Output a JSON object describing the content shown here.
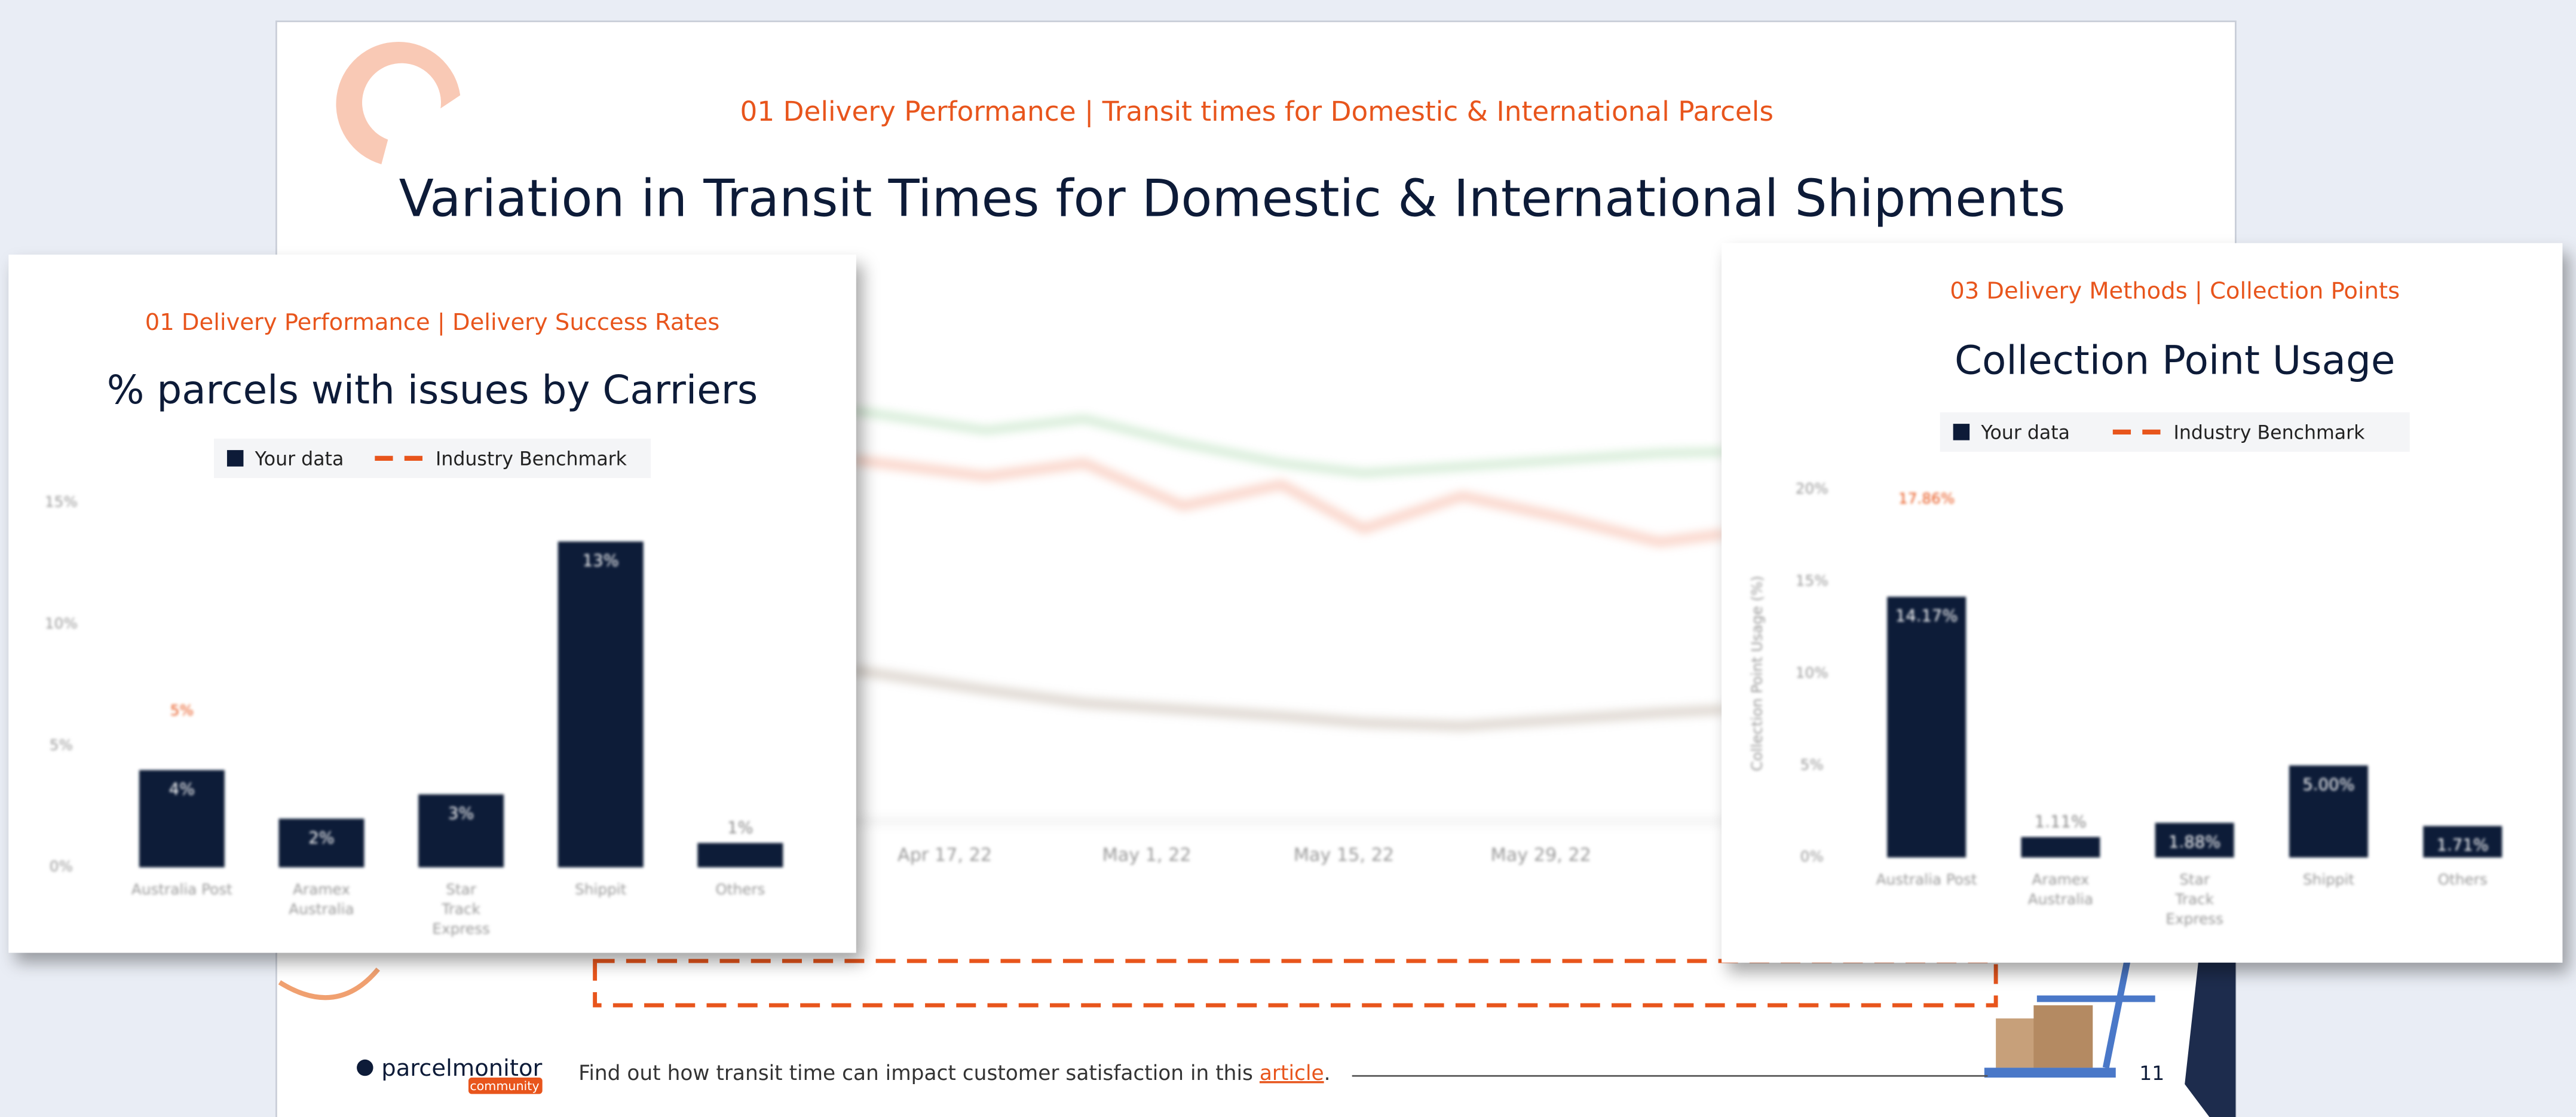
{
  "background_slide": {
    "subtitle": "01  Delivery Performance  |  Transit times for Domestic & International Parcels",
    "title": "Variation in Transit Times for Domestic & International Shipments",
    "x_labels": [
      "Apr 17, 22",
      "May 1, 22",
      "May 15, 22",
      "May 29, 22"
    ],
    "footer": {
      "brand": "parcelmonitor",
      "brand_tag": "community",
      "text": "Find out how transit time can impact customer satisfaction in this",
      "link": "article",
      "end": ".",
      "page": "11"
    }
  },
  "chart_data": [
    {
      "type": "bar",
      "subtitle": "01  Delivery Performance  |  Delivery Success Rates",
      "title": "% parcels with issues by Carriers",
      "categories": [
        "Australia Post",
        "Aramex Australia",
        "Star Track Express",
        "Shippit",
        "Others"
      ],
      "series": [
        {
          "name": "Your data",
          "color": "#0d1b38",
          "values": [
            4,
            2,
            3,
            13.4,
            1
          ],
          "value_labels": [
            "4%",
            "2%",
            "3%",
            "13%",
            "1%"
          ]
        }
      ],
      "benchmark": {
        "name": "Industry Benchmark",
        "color": "#e8551c",
        "value": 5.2,
        "value_label": "5%"
      },
      "ylim": [
        0,
        15
      ],
      "yticks": [
        {
          "value": 0,
          "label": "0%"
        },
        {
          "value": 5,
          "label": "5%"
        },
        {
          "value": 10,
          "label": "10%"
        },
        {
          "value": 15,
          "label": "15%"
        }
      ],
      "grid": true
    },
    {
      "type": "bar",
      "subtitle": "03  Delivery Methods | Collection Points",
      "title": "Collection Point Usage",
      "y_label": "Collection Point Usage (%)",
      "categories": [
        "Australia Post",
        "Aramex Australia",
        "Star Track Express",
        "Shippit",
        "Others"
      ],
      "series": [
        {
          "name": "Your data",
          "color": "#0d1b38",
          "values": [
            14.17,
            1.11,
            1.88,
            5,
            1.71
          ],
          "value_labels": [
            "14.17%",
            "1.11%",
            "1.88%",
            "5.00%",
            "1.71%"
          ]
        }
      ],
      "benchmark": {
        "name": "Industry Benchmark",
        "color": "#e8551c",
        "value": 17.86,
        "value_label": "17.86%"
      },
      "ylim": [
        0,
        20
      ],
      "yticks": [
        {
          "value": 0,
          "label": "0%"
        },
        {
          "value": 5,
          "label": "5%"
        },
        {
          "value": 10,
          "label": "10%"
        },
        {
          "value": 15,
          "label": "15%"
        },
        {
          "value": 20,
          "label": "20%"
        }
      ],
      "grid": true
    }
  ]
}
